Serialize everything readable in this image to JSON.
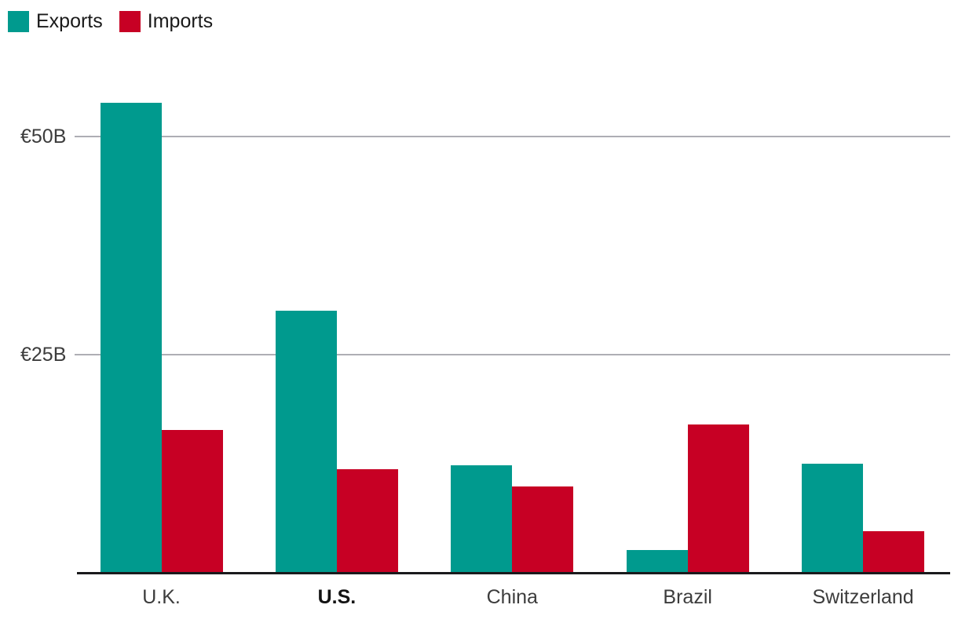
{
  "chart_data": {
    "type": "bar",
    "title": "",
    "categories": [
      "U.K.",
      "U.S.",
      "China",
      "Brazil",
      "Switzerland"
    ],
    "highlighted_category": "U.S.",
    "series": [
      {
        "name": "Exports",
        "color": "#009a8e",
        "values": [
          53.9,
          30.0,
          12.3,
          2.6,
          12.5
        ]
      },
      {
        "name": "Imports",
        "color": "#c70024",
        "values": [
          16.4,
          11.9,
          9.9,
          17.0,
          4.8
        ]
      }
    ],
    "y_axis": {
      "unit_prefix": "€",
      "unit_suffix": "B",
      "range": [
        0,
        55
      ],
      "ticks": [
        {
          "value": 25,
          "label": "€25B"
        },
        {
          "value": 50,
          "label": "€50B"
        }
      ]
    },
    "grid": "horizontal-lines",
    "legend_position": "top-left"
  },
  "colors": {
    "exports": "#009a8e",
    "imports": "#c70024",
    "gridline": "#aeaeb4",
    "axis_line": "#1a1a1c",
    "tick_label": "#3c3c3c",
    "category_label": "#3c3c3c",
    "highlight_label": "#141414",
    "legend_label": "#1a1a1a",
    "background": "#ffffff"
  }
}
